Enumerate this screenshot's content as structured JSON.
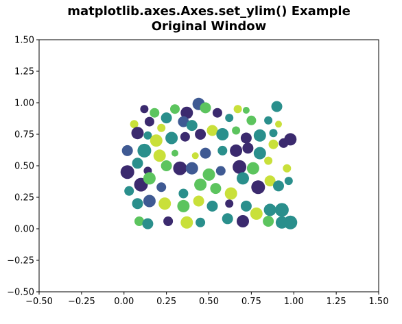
{
  "chart_data": {
    "type": "scatter",
    "title_line1": "matplotlib.axes.Axes.set_ylim() Example",
    "title_line2": "Original Window",
    "xlabel": "",
    "ylabel": "",
    "xlim": [
      -0.5,
      1.5
    ],
    "ylim": [
      -0.5,
      1.5
    ],
    "xticks": [
      -0.5,
      -0.25,
      0.0,
      0.25,
      0.5,
      0.75,
      1.0,
      1.25,
      1.5
    ],
    "xtick_labels": [
      "−0.50",
      "−0.25",
      "0.00",
      "0.25",
      "0.50",
      "0.75",
      "1.00",
      "1.25",
      "1.50"
    ],
    "yticks": [
      -0.5,
      -0.25,
      0.0,
      0.25,
      0.5,
      0.75,
      1.0,
      1.25,
      1.5
    ],
    "ytick_labels": [
      "−0.50",
      "−0.25",
      "0.00",
      "0.25",
      "0.50",
      "0.75",
      "1.00",
      "1.25",
      "1.50"
    ],
    "grid": false,
    "colormap": "viridis",
    "colors": {
      "purple": "#3b2a6e",
      "blue": "#3f5a93",
      "teal": "#2a8f8c",
      "green": "#5cc45e",
      "yellow": "#c9e03a"
    },
    "points": [
      {
        "x": 0.12,
        "y": 0.95,
        "s": 6,
        "c": "purple"
      },
      {
        "x": 0.18,
        "y": 0.92,
        "s": 7,
        "c": "green"
      },
      {
        "x": 0.25,
        "y": 0.88,
        "s": 8,
        "c": "teal"
      },
      {
        "x": 0.3,
        "y": 0.95,
        "s": 7,
        "c": "green"
      },
      {
        "x": 0.37,
        "y": 0.92,
        "s": 9,
        "c": "purple"
      },
      {
        "x": 0.44,
        "y": 0.99,
        "s": 9,
        "c": "blue"
      },
      {
        "x": 0.48,
        "y": 0.96,
        "s": 8,
        "c": "green"
      },
      {
        "x": 0.55,
        "y": 0.92,
        "s": 7,
        "c": "purple"
      },
      {
        "x": 0.67,
        "y": 0.95,
        "s": 6,
        "c": "yellow"
      },
      {
        "x": 0.72,
        "y": 0.94,
        "s": 5,
        "c": "green"
      },
      {
        "x": 0.9,
        "y": 0.97,
        "s": 8,
        "c": "teal"
      },
      {
        "x": 0.06,
        "y": 0.83,
        "s": 6,
        "c": "yellow"
      },
      {
        "x": 0.15,
        "y": 0.85,
        "s": 7,
        "c": "purple"
      },
      {
        "x": 0.22,
        "y": 0.8,
        "s": 6,
        "c": "yellow"
      },
      {
        "x": 0.35,
        "y": 0.85,
        "s": 8,
        "c": "blue"
      },
      {
        "x": 0.4,
        "y": 0.82,
        "s": 8,
        "c": "teal"
      },
      {
        "x": 0.62,
        "y": 0.88,
        "s": 6,
        "c": "teal"
      },
      {
        "x": 0.75,
        "y": 0.86,
        "s": 7,
        "c": "green"
      },
      {
        "x": 0.85,
        "y": 0.86,
        "s": 6,
        "c": "teal"
      },
      {
        "x": 0.91,
        "y": 0.83,
        "s": 5,
        "c": "yellow"
      },
      {
        "x": 0.08,
        "y": 0.76,
        "s": 9,
        "c": "purple"
      },
      {
        "x": 0.14,
        "y": 0.74,
        "s": 6,
        "c": "teal"
      },
      {
        "x": 0.19,
        "y": 0.7,
        "s": 9,
        "c": "yellow"
      },
      {
        "x": 0.28,
        "y": 0.72,
        "s": 9,
        "c": "teal"
      },
      {
        "x": 0.36,
        "y": 0.73,
        "s": 7,
        "c": "purple"
      },
      {
        "x": 0.45,
        "y": 0.75,
        "s": 8,
        "c": "purple"
      },
      {
        "x": 0.52,
        "y": 0.78,
        "s": 8,
        "c": "yellow"
      },
      {
        "x": 0.58,
        "y": 0.75,
        "s": 9,
        "c": "teal"
      },
      {
        "x": 0.66,
        "y": 0.78,
        "s": 6,
        "c": "green"
      },
      {
        "x": 0.72,
        "y": 0.72,
        "s": 8,
        "c": "purple"
      },
      {
        "x": 0.8,
        "y": 0.74,
        "s": 9,
        "c": "teal"
      },
      {
        "x": 0.88,
        "y": 0.76,
        "s": 6,
        "c": "teal"
      },
      {
        "x": 0.94,
        "y": 0.68,
        "s": 7,
        "c": "purple"
      },
      {
        "x": 0.98,
        "y": 0.71,
        "s": 9,
        "c": "purple"
      },
      {
        "x": 0.02,
        "y": 0.62,
        "s": 8,
        "c": "blue"
      },
      {
        "x": 0.12,
        "y": 0.62,
        "s": 10,
        "c": "teal"
      },
      {
        "x": 0.21,
        "y": 0.58,
        "s": 9,
        "c": "yellow"
      },
      {
        "x": 0.3,
        "y": 0.6,
        "s": 5,
        "c": "green"
      },
      {
        "x": 0.42,
        "y": 0.58,
        "s": 5,
        "c": "yellow"
      },
      {
        "x": 0.48,
        "y": 0.6,
        "s": 8,
        "c": "blue"
      },
      {
        "x": 0.58,
        "y": 0.62,
        "s": 7,
        "c": "teal"
      },
      {
        "x": 0.66,
        "y": 0.62,
        "s": 9,
        "c": "purple"
      },
      {
        "x": 0.73,
        "y": 0.64,
        "s": 8,
        "c": "purple"
      },
      {
        "x": 0.8,
        "y": 0.6,
        "s": 9,
        "c": "teal"
      },
      {
        "x": 0.88,
        "y": 0.67,
        "s": 7,
        "c": "yellow"
      },
      {
        "x": 0.02,
        "y": 0.45,
        "s": 10,
        "c": "purple"
      },
      {
        "x": 0.08,
        "y": 0.52,
        "s": 8,
        "c": "teal"
      },
      {
        "x": 0.14,
        "y": 0.46,
        "s": 6,
        "c": "purple"
      },
      {
        "x": 0.25,
        "y": 0.5,
        "s": 8,
        "c": "green"
      },
      {
        "x": 0.33,
        "y": 0.48,
        "s": 10,
        "c": "purple"
      },
      {
        "x": 0.4,
        "y": 0.48,
        "s": 9,
        "c": "blue"
      },
      {
        "x": 0.5,
        "y": 0.43,
        "s": 9,
        "c": "green"
      },
      {
        "x": 0.57,
        "y": 0.46,
        "s": 7,
        "c": "blue"
      },
      {
        "x": 0.68,
        "y": 0.49,
        "s": 10,
        "c": "purple"
      },
      {
        "x": 0.76,
        "y": 0.48,
        "s": 9,
        "c": "green"
      },
      {
        "x": 0.85,
        "y": 0.54,
        "s": 6,
        "c": "yellow"
      },
      {
        "x": 0.96,
        "y": 0.48,
        "s": 6,
        "c": "yellow"
      },
      {
        "x": 0.03,
        "y": 0.3,
        "s": 7,
        "c": "teal"
      },
      {
        "x": 0.1,
        "y": 0.35,
        "s": 10,
        "c": "purple"
      },
      {
        "x": 0.15,
        "y": 0.4,
        "s": 9,
        "c": "green"
      },
      {
        "x": 0.22,
        "y": 0.33,
        "s": 7,
        "c": "blue"
      },
      {
        "x": 0.35,
        "y": 0.28,
        "s": 7,
        "c": "teal"
      },
      {
        "x": 0.45,
        "y": 0.35,
        "s": 9,
        "c": "green"
      },
      {
        "x": 0.54,
        "y": 0.32,
        "s": 8,
        "c": "green"
      },
      {
        "x": 0.63,
        "y": 0.28,
        "s": 9,
        "c": "yellow"
      },
      {
        "x": 0.7,
        "y": 0.4,
        "s": 9,
        "c": "teal"
      },
      {
        "x": 0.79,
        "y": 0.33,
        "s": 10,
        "c": "purple"
      },
      {
        "x": 0.86,
        "y": 0.38,
        "s": 8,
        "c": "yellow"
      },
      {
        "x": 0.91,
        "y": 0.34,
        "s": 8,
        "c": "teal"
      },
      {
        "x": 0.97,
        "y": 0.38,
        "s": 6,
        "c": "teal"
      },
      {
        "x": 0.08,
        "y": 0.2,
        "s": 8,
        "c": "teal"
      },
      {
        "x": 0.15,
        "y": 0.22,
        "s": 9,
        "c": "blue"
      },
      {
        "x": 0.24,
        "y": 0.2,
        "s": 9,
        "c": "yellow"
      },
      {
        "x": 0.35,
        "y": 0.18,
        "s": 9,
        "c": "green"
      },
      {
        "x": 0.44,
        "y": 0.22,
        "s": 8,
        "c": "yellow"
      },
      {
        "x": 0.52,
        "y": 0.18,
        "s": 8,
        "c": "teal"
      },
      {
        "x": 0.62,
        "y": 0.2,
        "s": 6,
        "c": "purple"
      },
      {
        "x": 0.72,
        "y": 0.18,
        "s": 8,
        "c": "teal"
      },
      {
        "x": 0.86,
        "y": 0.15,
        "s": 9,
        "c": "teal"
      },
      {
        "x": 0.93,
        "y": 0.15,
        "s": 10,
        "c": "teal"
      },
      {
        "x": 0.09,
        "y": 0.06,
        "s": 7,
        "c": "green"
      },
      {
        "x": 0.14,
        "y": 0.04,
        "s": 8,
        "c": "teal"
      },
      {
        "x": 0.26,
        "y": 0.06,
        "s": 7,
        "c": "purple"
      },
      {
        "x": 0.37,
        "y": 0.05,
        "s": 9,
        "c": "yellow"
      },
      {
        "x": 0.45,
        "y": 0.05,
        "s": 7,
        "c": "teal"
      },
      {
        "x": 0.61,
        "y": 0.08,
        "s": 8,
        "c": "teal"
      },
      {
        "x": 0.7,
        "y": 0.06,
        "s": 9,
        "c": "purple"
      },
      {
        "x": 0.78,
        "y": 0.12,
        "s": 9,
        "c": "yellow"
      },
      {
        "x": 0.85,
        "y": 0.06,
        "s": 8,
        "c": "green"
      },
      {
        "x": 0.93,
        "y": 0.05,
        "s": 9,
        "c": "teal"
      },
      {
        "x": 0.98,
        "y": 0.05,
        "s": 10,
        "c": "teal"
      }
    ]
  }
}
